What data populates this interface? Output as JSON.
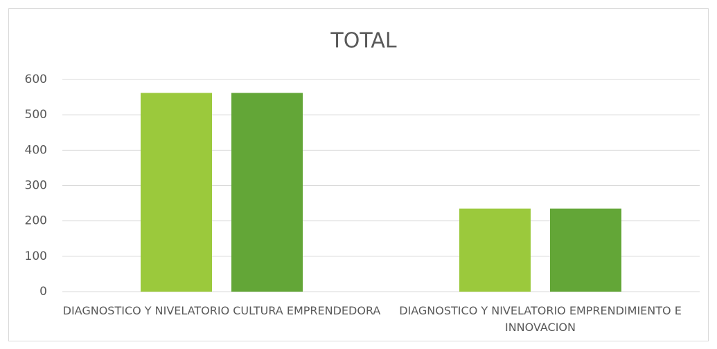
{
  "chart_data": {
    "type": "bar",
    "title": "TOTAL",
    "categories": [
      "DIAGNOSTICO Y NIVELATORIO CULTURA EMPRENDEDORA",
      "DIAGNOSTICO Y NIVELATORIO EMPRENDIMIENTO E INNOVACION"
    ],
    "series": [
      {
        "color": "#9bc93c",
        "values": [
          562,
          235
        ]
      },
      {
        "color": "#63a637",
        "values": [
          562,
          235
        ]
      }
    ],
    "ylim": [
      0,
      600
    ],
    "yticks": [
      0,
      100,
      200,
      300,
      400,
      500,
      600
    ],
    "grid": true
  }
}
